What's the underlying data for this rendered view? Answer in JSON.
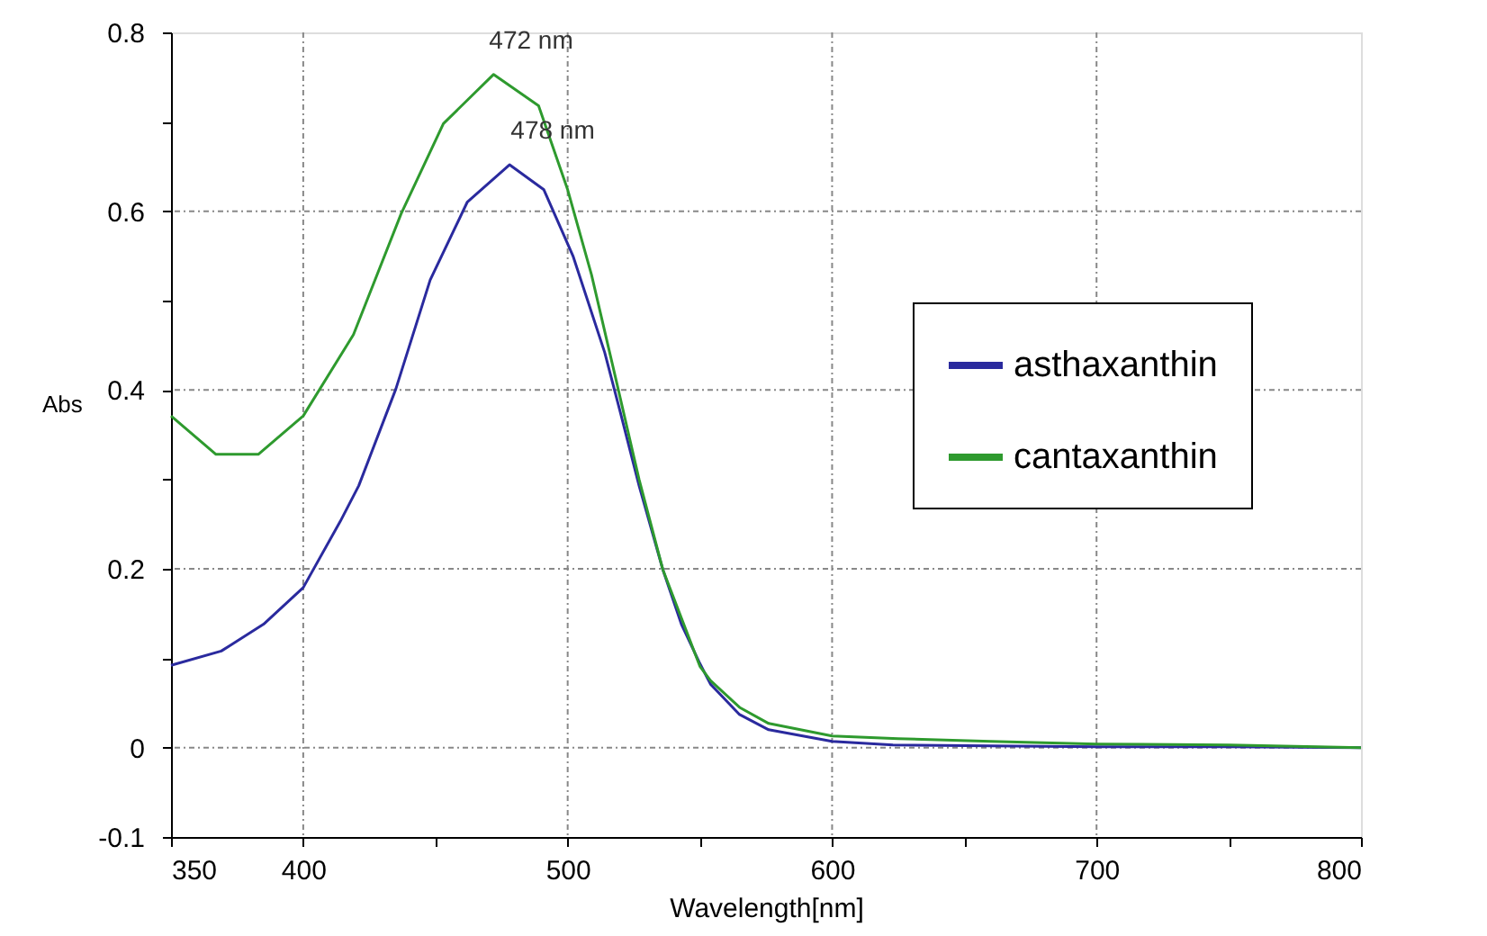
{
  "chart_data": {
    "type": "line",
    "xlabel": "Wavelength[nm]",
    "ylabel": "Abs",
    "xlim": [
      350,
      800
    ],
    "ylim": [
      -0.1,
      0.8
    ],
    "xticks": [
      350,
      400,
      {
        "value": 450,
        "label": null
      },
      500,
      {
        "value": 550,
        "label": null
      },
      600,
      {
        "value": 650,
        "label": null
      },
      700,
      {
        "value": 750,
        "label": null
      },
      800
    ],
    "yticks": [
      -0.1,
      0,
      {
        "value": 0.1,
        "label": null
      },
      0.2,
      {
        "value": 0.3,
        "label": null
      },
      0.4,
      {
        "value": 0.5,
        "label": null
      },
      0.6,
      {
        "value": 0.7,
        "label": null
      },
      0.8
    ],
    "grid": true,
    "legend": "right",
    "line_style": "solid",
    "marker": "none",
    "series": [
      {
        "name": "asthaxanthin",
        "color": "#2a2a9e",
        "x": [
          350,
          369,
          385,
          400,
          414,
          421,
          435,
          448,
          462,
          478,
          491,
          502,
          514,
          520,
          527,
          536,
          543,
          550,
          554,
          565,
          576,
          600,
          623,
          660,
          700,
          750,
          800
        ],
        "values": [
          0.092,
          0.108,
          0.138,
          0.179,
          0.253,
          0.293,
          0.401,
          0.523,
          0.61,
          0.652,
          0.624,
          0.55,
          0.442,
          0.374,
          0.293,
          0.199,
          0.138,
          0.094,
          0.071,
          0.037,
          0.02,
          0.007,
          0.003,
          0.002,
          0.001,
          0.001,
          0.0
        ]
      },
      {
        "name": "cantaxanthin",
        "color": "#2e9a2e",
        "x": [
          350,
          367,
          383,
          400,
          419,
          437,
          453,
          472,
          489,
          500,
          509,
          518,
          527,
          536,
          550,
          554,
          565,
          576,
          600,
          625,
          660,
          700,
          750,
          800
        ],
        "values": [
          0.371,
          0.328,
          0.328,
          0.371,
          0.462,
          0.597,
          0.698,
          0.753,
          0.718,
          0.624,
          0.529,
          0.415,
          0.3,
          0.199,
          0.091,
          0.075,
          0.045,
          0.027,
          0.013,
          0.01,
          0.007,
          0.004,
          0.003,
          0.0
        ]
      }
    ],
    "annotations": [
      "472 nm",
      "478 nm"
    ]
  }
}
